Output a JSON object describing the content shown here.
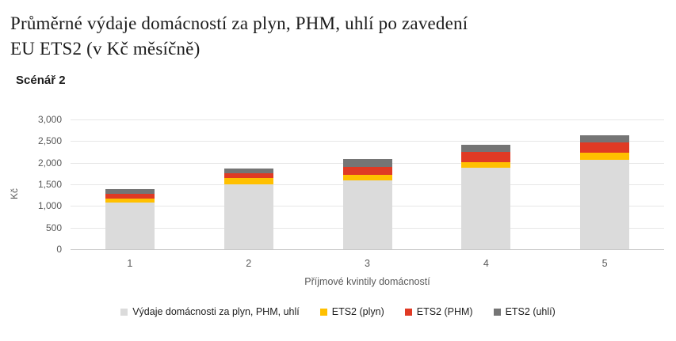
{
  "header": {
    "title_line1": "Průměrné výdaje domácností za plyn, PHM, uhlí po zavedení",
    "title_line2": "EU ETS2 (v Kč měsíčně)",
    "subtitle": "Scénář 2"
  },
  "chart_data": {
    "type": "bar",
    "stacked": true,
    "title": "Průměrné výdaje domácností za plyn, PHM, uhlí po zavedení EU ETS2 (v Kč měsíčně)",
    "subtitle": "Scénář 2",
    "categories": [
      "1",
      "2",
      "3",
      "4",
      "5"
    ],
    "series": [
      {
        "name": "Výdaje domácnosti za plyn, PHM, uhlí",
        "color": "#dbdbdb",
        "values": [
          1080,
          1500,
          1590,
          1880,
          2060
        ]
      },
      {
        "name": "ETS2 (plyn)",
        "color": "#ffc000",
        "values": [
          100,
          150,
          130,
          135,
          170
        ]
      },
      {
        "name": "ETS2 (PHM)",
        "color": "#e03a24",
        "values": [
          100,
          110,
          185,
          240,
          245
        ]
      },
      {
        "name": "ETS2 (uhlí)",
        "color": "#757575",
        "values": [
          120,
          110,
          185,
          165,
          155
        ]
      }
    ],
    "stack_totals": [
      1400,
      1870,
      2090,
      2420,
      2630
    ],
    "xlabel": "Příjmové kvintily domácností",
    "ylabel": "Kč",
    "ylim": [
      0,
      3000
    ],
    "ytick_step": 500,
    "ytick_labels": [
      "0",
      "500",
      "1,000",
      "1,500",
      "2,000",
      "2,500",
      "3,000"
    ],
    "grid": true,
    "legend_position": "bottom"
  }
}
